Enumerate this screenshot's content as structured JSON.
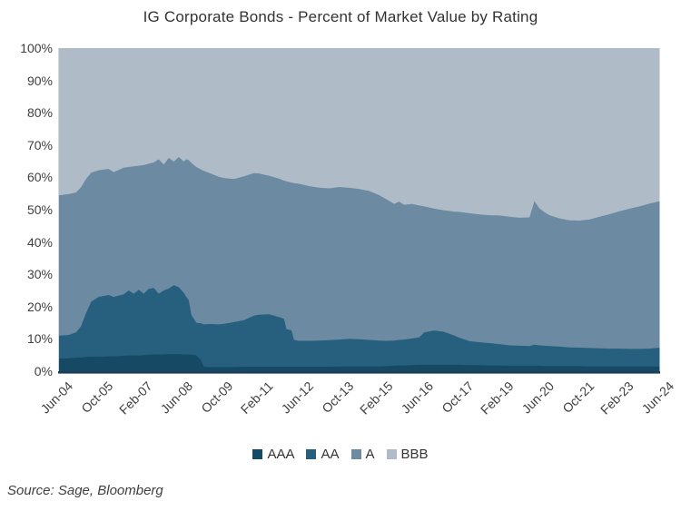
{
  "title": "IG Corporate Bonds - Percent of Market Value by Rating",
  "source": "Source: Sage, Bloomberg",
  "colors": {
    "axis_line": "#1C3E57",
    "tick_text": "#404040",
    "title_text": "#333333"
  },
  "chart_data": {
    "type": "area",
    "stacked": true,
    "title": "IG Corporate Bonds - Percent of Market Value by Rating",
    "xlabel": "",
    "ylabel": "",
    "ylim": [
      0,
      100
    ],
    "grid": false,
    "legend_position": "bottom",
    "x_unit": "months since Jun-2004 (0 = Jun-04, 240 = Jun-24)",
    "y_tick_labels": [
      "100%",
      "90%",
      "80%",
      "70%",
      "60%",
      "50%",
      "40%",
      "30%",
      "20%",
      "10%",
      "0%"
    ],
    "x_tick_labels": [
      "Jun-04",
      "Oct-05",
      "Feb-07",
      "Jun-08",
      "Oct-09",
      "Feb-11",
      "Jun-12",
      "Oct-13",
      "Feb-15",
      "Jun-16",
      "Oct-17",
      "Feb-19",
      "Jun-20",
      "Oct-21",
      "Feb-23",
      "Jun-24"
    ],
    "x": [
      0,
      4,
      7,
      9,
      11,
      13,
      16,
      20,
      22,
      26,
      28,
      30,
      32,
      34,
      36,
      38,
      40,
      42,
      44,
      46,
      48,
      50,
      51,
      52,
      53,
      55,
      57,
      58,
      60,
      64,
      66,
      70,
      74,
      78,
      80,
      84,
      88,
      90,
      91,
      93,
      94,
      96,
      100,
      104,
      108,
      112,
      116,
      120,
      124,
      128,
      131,
      134,
      136,
      138,
      141,
      144,
      146,
      150,
      154,
      158,
      160,
      164,
      168,
      172,
      176,
      180,
      184,
      188,
      190,
      192,
      194,
      196,
      200,
      204,
      208,
      212,
      216,
      220,
      224,
      228,
      232,
      236,
      240
    ],
    "series": [
      {
        "name": "AAA",
        "color": "#164A64",
        "values": [
          3.9,
          4.0,
          4.2,
          4.3,
          4.4,
          4.5,
          4.5,
          4.6,
          4.6,
          4.8,
          4.9,
          4.9,
          4.9,
          5.0,
          5.1,
          5.2,
          5.2,
          5.2,
          5.3,
          5.3,
          5.3,
          5.2,
          5.2,
          5.2,
          5.1,
          5.0,
          3.2,
          1.4,
          1.3,
          1.3,
          1.3,
          1.3,
          1.4,
          1.4,
          1.4,
          1.4,
          1.4,
          1.4,
          1.4,
          1.4,
          1.4,
          1.4,
          1.4,
          1.4,
          1.4,
          1.5,
          1.5,
          1.5,
          1.5,
          1.5,
          1.6,
          1.7,
          1.8,
          1.8,
          1.9,
          2.0,
          2.0,
          2.0,
          2.0,
          2.0,
          2.0,
          1.9,
          1.9,
          1.8,
          1.8,
          1.7,
          1.7,
          1.7,
          1.7,
          1.7,
          1.6,
          1.6,
          1.6,
          1.6,
          1.6,
          1.5,
          1.5,
          1.5,
          1.5,
          1.5,
          1.5,
          1.5,
          1.5
        ]
      },
      {
        "name": "AA",
        "color": "#27607E",
        "values": [
          7.1,
          7.2,
          7.8,
          9.7,
          13.6,
          17.0,
          18.5,
          19.0,
          18.4,
          19.0,
          20.1,
          19.1,
          20.3,
          19.0,
          20.4,
          20.6,
          18.8,
          19.8,
          20.3,
          21.3,
          20.7,
          19.0,
          17.8,
          16.8,
          12.4,
          10.0,
          11.6,
          13.1,
          13.3,
          13.2,
          13.4,
          13.9,
          14.4,
          15.8,
          16.1,
          16.2,
          15.4,
          14.8,
          11.6,
          11.3,
          8.3,
          8.0,
          8.0,
          8.1,
          8.2,
          8.3,
          8.5,
          8.4,
          8.2,
          8.0,
          7.8,
          7.8,
          7.9,
          8.0,
          8.2,
          8.5,
          10.0,
          10.6,
          10.2,
          9.0,
          8.4,
          7.4,
          7.1,
          6.9,
          6.6,
          6.3,
          6.2,
          6.1,
          6.5,
          6.3,
          6.3,
          6.2,
          6.0,
          5.8,
          5.7,
          5.7,
          5.6,
          5.5,
          5.5,
          5.4,
          5.4,
          5.5,
          5.8
        ]
      },
      {
        "name": "A",
        "color": "#6C8AA1",
        "values": [
          43.4,
          43.6,
          43.3,
          43.0,
          41.5,
          40.0,
          39.2,
          39.0,
          38.6,
          39.2,
          38.2,
          39.4,
          38.4,
          39.8,
          38.7,
          38.8,
          41.6,
          39.0,
          40.4,
          38.3,
          40.3,
          40.7,
          42.6,
          43.3,
          47.0,
          48.2,
          47.6,
          47.5,
          46.8,
          45.7,
          45.1,
          44.3,
          44.5,
          44.1,
          43.7,
          42.9,
          42.8,
          42.8,
          45.8,
          45.7,
          48.5,
          48.6,
          47.9,
          47.3,
          47.0,
          47.2,
          46.8,
          46.5,
          46.1,
          45.0,
          43.8,
          42.3,
          42.8,
          41.7,
          41.7,
          40.8,
          39.0,
          37.7,
          37.6,
          38.4,
          38.9,
          39.6,
          39.5,
          39.6,
          39.8,
          39.8,
          39.6,
          39.8,
          44.4,
          42.4,
          41.3,
          40.5,
          39.7,
          39.3,
          39.3,
          39.8,
          40.7,
          41.6,
          42.5,
          43.4,
          44.1,
          44.9,
          45.3
        ]
      },
      {
        "name": "BBB",
        "color": "#AFBCC7",
        "values": [
          45.6,
          45.2,
          44.7,
          43.0,
          40.5,
          38.5,
          37.8,
          37.4,
          38.4,
          37.0,
          36.8,
          36.6,
          36.4,
          36.2,
          35.8,
          35.4,
          34.4,
          36.0,
          34.0,
          35.1,
          33.7,
          35.1,
          34.4,
          34.7,
          35.5,
          36.8,
          37.6,
          38.0,
          38.6,
          39.8,
          40.2,
          40.5,
          39.7,
          38.7,
          38.8,
          39.5,
          40.4,
          41.0,
          41.2,
          41.6,
          41.8,
          42.0,
          42.7,
          43.2,
          43.4,
          43.0,
          43.2,
          43.6,
          44.2,
          45.5,
          46.8,
          48.2,
          47.5,
          48.5,
          48.2,
          48.7,
          49.0,
          49.7,
          50.2,
          50.6,
          50.7,
          51.1,
          51.5,
          51.7,
          51.8,
          52.2,
          52.5,
          52.4,
          47.4,
          49.6,
          50.8,
          51.7,
          52.7,
          53.3,
          53.4,
          53.0,
          52.2,
          51.4,
          50.5,
          49.7,
          49.0,
          48.1,
          47.4
        ]
      }
    ]
  }
}
